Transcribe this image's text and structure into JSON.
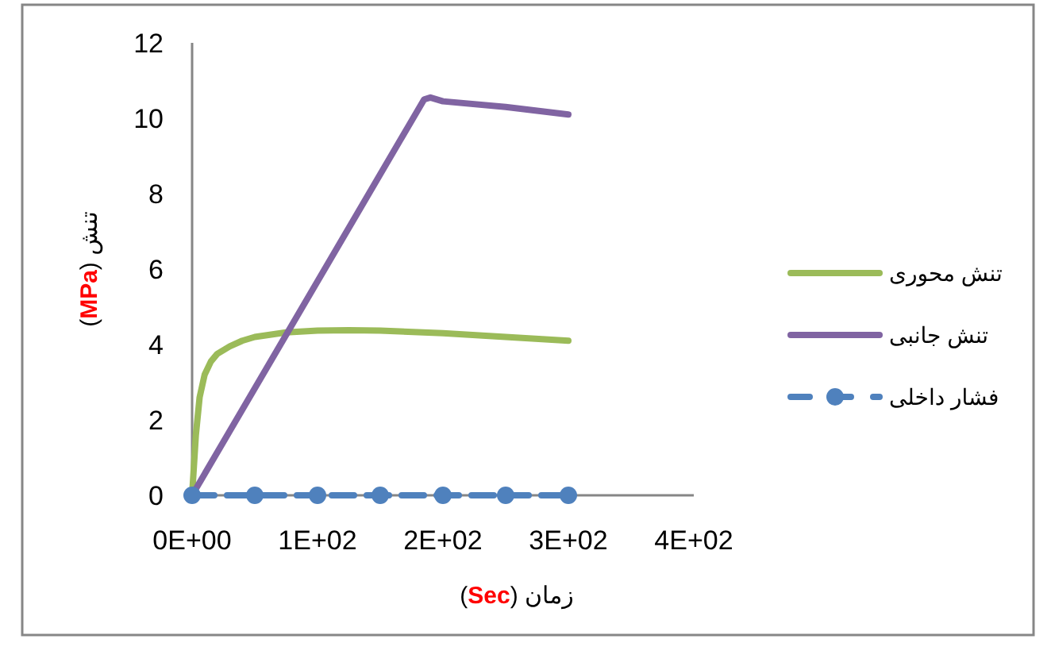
{
  "chart_data": {
    "type": "line",
    "xlabel": "زمان (**Sec**)",
    "ylabel": "تنش (**MPa**)",
    "xlim": [
      0,
      400
    ],
    "ylim": [
      0,
      12
    ],
    "xticks": [
      {
        "value": 0,
        "label": "0E+00"
      },
      {
        "value": 100,
        "label": "1E+02"
      },
      {
        "value": 200,
        "label": "2E+02"
      },
      {
        "value": 300,
        "label": "3E+02"
      },
      {
        "value": 400,
        "label": "4E+02"
      }
    ],
    "yticks": [
      0,
      2,
      4,
      6,
      8,
      10,
      12
    ],
    "grid": false,
    "legend": "right",
    "series": [
      {
        "name": "تنش محوری",
        "color": "#9bbb59",
        "x": [
          0,
          3,
          6,
          10,
          15,
          20,
          30,
          40,
          50,
          75,
          100,
          125,
          150,
          200,
          250,
          300
        ],
        "values": [
          0,
          1.6,
          2.6,
          3.2,
          3.55,
          3.75,
          3.95,
          4.1,
          4.2,
          4.32,
          4.37,
          4.38,
          4.37,
          4.3,
          4.2,
          4.1
        ],
        "marker": "none",
        "line_style": "solid"
      },
      {
        "name": "تنش جانبی",
        "color": "#8064a2",
        "x": [
          0,
          185,
          190,
          200,
          250,
          300
        ],
        "values": [
          0,
          10.5,
          10.55,
          10.45,
          10.3,
          10.1
        ],
        "marker": "none",
        "line_style": "solid"
      },
      {
        "name": "فشار داخلی",
        "color": "#4f81bd",
        "x": [
          0,
          50,
          100,
          150,
          200,
          250,
          300
        ],
        "values": [
          0,
          0,
          0,
          0,
          0,
          0,
          0
        ],
        "marker": "circle",
        "line_style": "dashed"
      }
    ]
  }
}
